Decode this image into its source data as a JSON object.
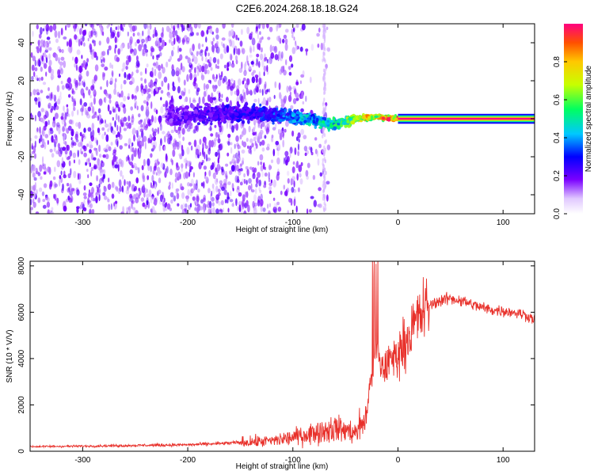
{
  "title": "C2E6.2024.268.18.18.G24",
  "colors": {
    "trace": "#e8302a",
    "background": "#ffffff",
    "axis": "#000000"
  },
  "chart_data": [
    {
      "type": "heatmap",
      "xlabel": "Height of straight line (km)",
      "ylabel": "Frequency (Hz)",
      "xlim": [
        -350,
        130
      ],
      "ylim": [
        -50,
        50
      ],
      "x_ticks": [
        "-300",
        "-200",
        "-100",
        "0",
        "100"
      ],
      "y_ticks": [
        "-40",
        "-20",
        "0",
        "20",
        "40"
      ],
      "colorbar": {
        "label": "Normalized spectral amplitude",
        "range": [
          0,
          1
        ],
        "ticks": [
          "0.0",
          "0.2",
          "0.4",
          "0.6",
          "0.8"
        ]
      },
      "ridge": {
        "description_points_x": [
          -220,
          -180,
          -140,
          -120,
          -100,
          -80,
          -60,
          -40,
          -20,
          0,
          130
        ],
        "frequency": [
          1,
          2,
          3,
          2,
          1,
          -1,
          -3,
          0,
          1,
          0,
          0
        ],
        "amplitude": [
          0.2,
          0.25,
          0.3,
          0.35,
          0.4,
          0.5,
          0.55,
          0.75,
          0.85,
          0.95,
          1.0
        ]
      }
    },
    {
      "type": "line",
      "xlabel": "Height of straight line (km)",
      "ylabel": "SNR (10 * V/V)",
      "xlim": [
        -350,
        130
      ],
      "ylim": [
        0,
        8200
      ],
      "x_ticks": [
        "-300",
        "-200",
        "-100",
        "0",
        "100"
      ],
      "y_ticks": [
        "0",
        "2000",
        "4000",
        "6000",
        "8000"
      ],
      "series": [
        {
          "x": [
            -350,
            -300,
            -250,
            -200,
            -170,
            -150,
            -120,
            -100,
            -80,
            -60,
            -40,
            -30,
            -25,
            -20,
            -15,
            -10,
            0,
            10,
            20,
            30,
            40,
            50,
            60,
            70,
            80,
            90,
            100,
            110,
            120,
            130
          ],
          "y": [
            200,
            220,
            250,
            280,
            330,
            380,
            450,
            600,
            800,
            1000,
            800,
            1500,
            3500,
            4500,
            3500,
            3800,
            4200,
            5000,
            5800,
            6300,
            6500,
            6600,
            6500,
            6350,
            6200,
            6100,
            6050,
            6000,
            5900,
            5700
          ]
        }
      ]
    }
  ]
}
